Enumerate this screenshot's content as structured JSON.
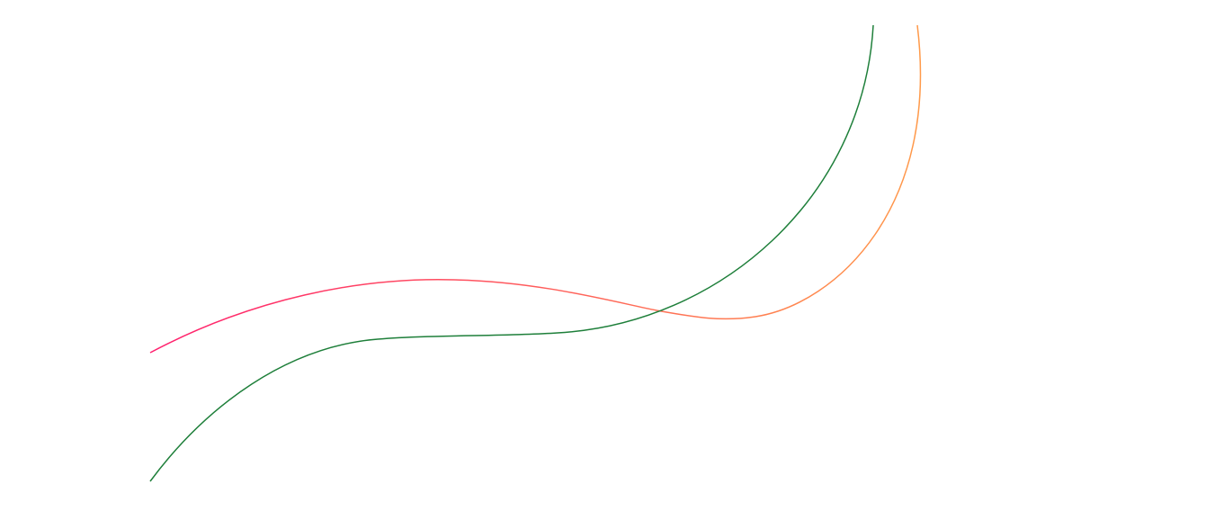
{
  "curves": [
    {
      "id": "gradient-curve",
      "colors": {
        "start": "#ff1f6e",
        "end": "#ff9a4a"
      }
    },
    {
      "id": "green-curve",
      "color": "#1e7f3a"
    }
  ],
  "background": "#ffffff"
}
